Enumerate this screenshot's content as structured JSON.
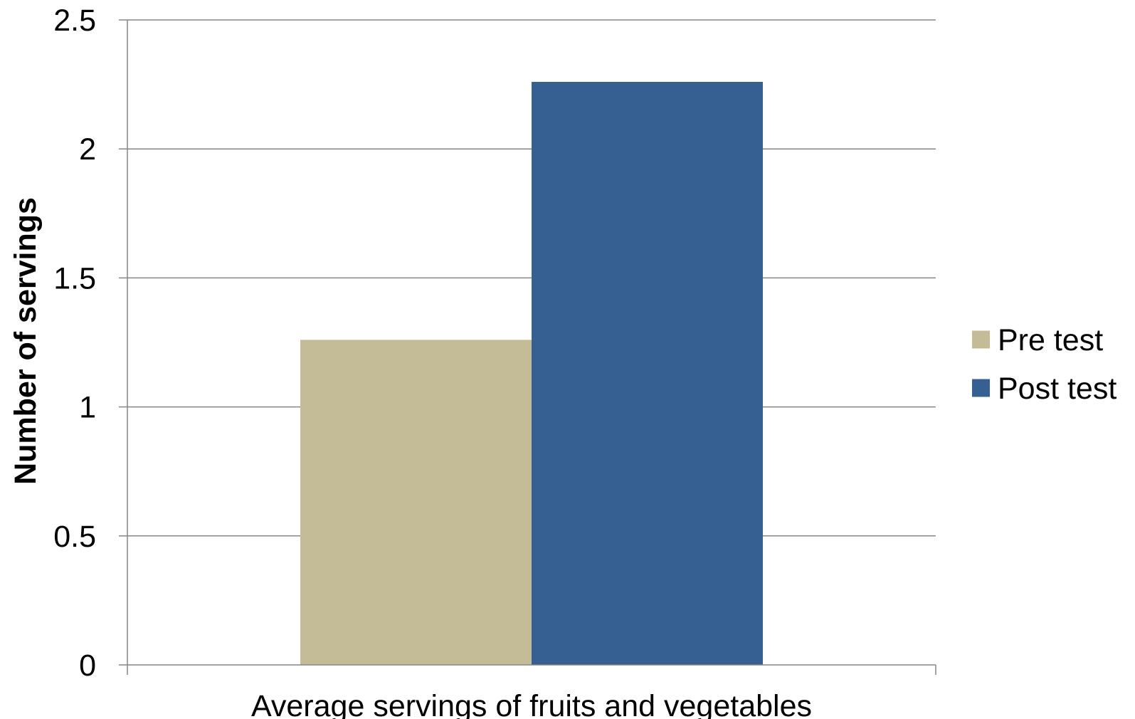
{
  "chart_data": {
    "type": "bar",
    "title": "",
    "xlabel": "",
    "ylabel": "Number of servings",
    "categories": [
      "Average servings of fruits and vegetables"
    ],
    "series": [
      {
        "name": "Pre test",
        "values": [
          1.26
        ],
        "color": "#C4BC96"
      },
      {
        "name": "Post test",
        "values": [
          2.26
        ],
        "color": "#376092"
      }
    ],
    "ylim": [
      0,
      2.5
    ],
    "yticks": [
      0,
      0.5,
      1,
      1.5,
      2,
      2.5
    ],
    "ytick_labels": [
      "0",
      "0.5",
      "1",
      "1.5",
      "2",
      "2.5"
    ],
    "grid": true,
    "grid_color": "#868686",
    "legend_position": "right"
  }
}
